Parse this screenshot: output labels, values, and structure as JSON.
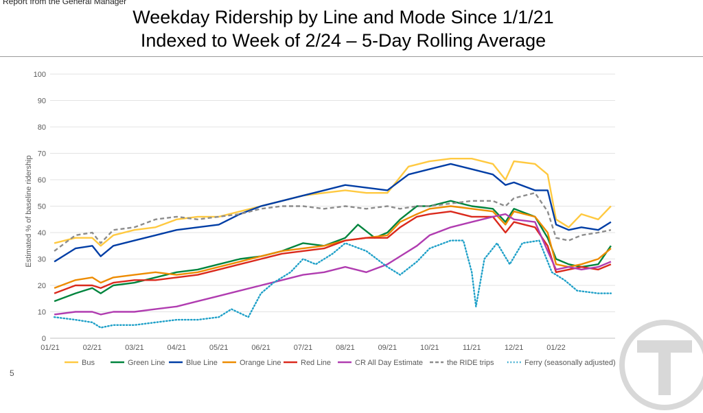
{
  "header_note": "Report from the General Manager",
  "page_number": "5",
  "logo_icon": "mbta-t-logo-icon",
  "chart_data": {
    "type": "line",
    "title_lines": [
      "Weekday Ridership by Line and Mode Since 1/1/21",
      "Indexed to Week of 2/24 – 5-Day Rolling Average"
    ],
    "xlabel": "",
    "ylabel": "Estimated % of baseline ridership",
    "ylim": [
      0,
      100
    ],
    "yticks": [
      0,
      10,
      20,
      30,
      40,
      50,
      60,
      70,
      80,
      90,
      100
    ],
    "xlim": [
      0,
      13.4
    ],
    "xticks": [
      {
        "label": "01/21",
        "x": 0
      },
      {
        "label": "02/21",
        "x": 1
      },
      {
        "label": "03/21",
        "x": 2
      },
      {
        "label": "04/21",
        "x": 3
      },
      {
        "label": "05/21",
        "x": 4
      },
      {
        "label": "06/21",
        "x": 5
      },
      {
        "label": "07/21",
        "x": 6
      },
      {
        "label": "08/21",
        "x": 7
      },
      {
        "label": "09/21",
        "x": 8
      },
      {
        "label": "10/21",
        "x": 9
      },
      {
        "label": "11/21",
        "x": 10
      },
      {
        "label": "12/21",
        "x": 11
      },
      {
        "label": "01/22",
        "x": 12
      }
    ],
    "grid": "horizontal",
    "legend_position": "bottom",
    "series": [
      {
        "name": "Bus",
        "color": "#FFC940",
        "dash": "solid",
        "points": [
          [
            0.1,
            36
          ],
          [
            0.6,
            38
          ],
          [
            1.0,
            38
          ],
          [
            1.2,
            35
          ],
          [
            1.5,
            39
          ],
          [
            2.0,
            41
          ],
          [
            2.5,
            42
          ],
          [
            3.0,
            45
          ],
          [
            3.5,
            46
          ],
          [
            4.0,
            46
          ],
          [
            4.5,
            48
          ],
          [
            5.0,
            50
          ],
          [
            5.5,
            52
          ],
          [
            6.0,
            54
          ],
          [
            6.5,
            55
          ],
          [
            7.0,
            56
          ],
          [
            7.5,
            55
          ],
          [
            8.0,
            55
          ],
          [
            8.5,
            65
          ],
          [
            9.0,
            67
          ],
          [
            9.5,
            68
          ],
          [
            10.0,
            68
          ],
          [
            10.5,
            66
          ],
          [
            10.8,
            60
          ],
          [
            11.0,
            67
          ],
          [
            11.5,
            66
          ],
          [
            11.8,
            62
          ],
          [
            12.0,
            45
          ],
          [
            12.3,
            42
          ],
          [
            12.6,
            47
          ],
          [
            13.0,
            45
          ],
          [
            13.3,
            50
          ]
        ]
      },
      {
        "name": "Green Line",
        "color": "#00843D",
        "dash": "solid",
        "points": [
          [
            0.1,
            14
          ],
          [
            0.6,
            17
          ],
          [
            1.0,
            19
          ],
          [
            1.2,
            17
          ],
          [
            1.5,
            20
          ],
          [
            2.0,
            21
          ],
          [
            2.5,
            23
          ],
          [
            3.0,
            25
          ],
          [
            3.5,
            26
          ],
          [
            4.0,
            28
          ],
          [
            4.5,
            30
          ],
          [
            5.0,
            31
          ],
          [
            5.5,
            33
          ],
          [
            6.0,
            36
          ],
          [
            6.5,
            35
          ],
          [
            7.0,
            38
          ],
          [
            7.3,
            43
          ],
          [
            7.7,
            38
          ],
          [
            8.0,
            40
          ],
          [
            8.3,
            45
          ],
          [
            8.7,
            50
          ],
          [
            9.0,
            50
          ],
          [
            9.5,
            52
          ],
          [
            10.0,
            50
          ],
          [
            10.5,
            49
          ],
          [
            10.8,
            44
          ],
          [
            11.0,
            49
          ],
          [
            11.5,
            46
          ],
          [
            11.8,
            38
          ],
          [
            12.0,
            30
          ],
          [
            12.3,
            28
          ],
          [
            12.6,
            27
          ],
          [
            13.0,
            28
          ],
          [
            13.3,
            35
          ]
        ]
      },
      {
        "name": "Blue Line",
        "color": "#003DA5",
        "dash": "solid",
        "points": [
          [
            0.1,
            29
          ],
          [
            0.6,
            34
          ],
          [
            1.0,
            35
          ],
          [
            1.2,
            31
          ],
          [
            1.5,
            35
          ],
          [
            2.0,
            37
          ],
          [
            2.5,
            39
          ],
          [
            3.0,
            41
          ],
          [
            3.5,
            42
          ],
          [
            4.0,
            43
          ],
          [
            4.5,
            47
          ],
          [
            5.0,
            50
          ],
          [
            5.5,
            52
          ],
          [
            6.0,
            54
          ],
          [
            6.5,
            56
          ],
          [
            7.0,
            58
          ],
          [
            7.5,
            57
          ],
          [
            8.0,
            56
          ],
          [
            8.5,
            62
          ],
          [
            9.0,
            64
          ],
          [
            9.5,
            66
          ],
          [
            10.0,
            64
          ],
          [
            10.5,
            62
          ],
          [
            10.8,
            58
          ],
          [
            11.0,
            59
          ],
          [
            11.5,
            56
          ],
          [
            11.8,
            56
          ],
          [
            12.0,
            43
          ],
          [
            12.3,
            41
          ],
          [
            12.6,
            42
          ],
          [
            13.0,
            41
          ],
          [
            13.3,
            44
          ]
        ]
      },
      {
        "name": "Orange Line",
        "color": "#ED8B00",
        "dash": "solid",
        "points": [
          [
            0.1,
            19
          ],
          [
            0.6,
            22
          ],
          [
            1.0,
            23
          ],
          [
            1.2,
            21
          ],
          [
            1.5,
            23
          ],
          [
            2.0,
            24
          ],
          [
            2.5,
            25
          ],
          [
            3.0,
            24
          ],
          [
            3.5,
            25
          ],
          [
            4.0,
            27
          ],
          [
            4.5,
            29
          ],
          [
            5.0,
            31
          ],
          [
            5.5,
            33
          ],
          [
            6.0,
            34
          ],
          [
            6.5,
            35
          ],
          [
            7.0,
            37
          ],
          [
            7.5,
            38
          ],
          [
            8.0,
            39
          ],
          [
            8.3,
            44
          ],
          [
            8.7,
            47
          ],
          [
            9.0,
            49
          ],
          [
            9.5,
            50
          ],
          [
            10.0,
            49
          ],
          [
            10.5,
            48
          ],
          [
            10.8,
            43
          ],
          [
            11.0,
            48
          ],
          [
            11.5,
            46
          ],
          [
            11.8,
            40
          ],
          [
            12.0,
            28
          ],
          [
            12.3,
            27
          ],
          [
            12.6,
            28
          ],
          [
            13.0,
            30
          ],
          [
            13.3,
            34
          ]
        ]
      },
      {
        "name": "Red Line",
        "color": "#DA291C",
        "dash": "solid",
        "points": [
          [
            0.1,
            17
          ],
          [
            0.6,
            20
          ],
          [
            1.0,
            20
          ],
          [
            1.2,
            19
          ],
          [
            1.5,
            21
          ],
          [
            2.0,
            22
          ],
          [
            2.5,
            22
          ],
          [
            3.0,
            23
          ],
          [
            3.5,
            24
          ],
          [
            4.0,
            26
          ],
          [
            4.5,
            28
          ],
          [
            5.0,
            30
          ],
          [
            5.5,
            32
          ],
          [
            6.0,
            33
          ],
          [
            6.5,
            34
          ],
          [
            7.0,
            37
          ],
          [
            7.5,
            38
          ],
          [
            8.0,
            38
          ],
          [
            8.3,
            42
          ],
          [
            8.7,
            46
          ],
          [
            9.0,
            47
          ],
          [
            9.5,
            48
          ],
          [
            10.0,
            46
          ],
          [
            10.5,
            46
          ],
          [
            10.8,
            40
          ],
          [
            11.0,
            44
          ],
          [
            11.5,
            42
          ],
          [
            11.8,
            35
          ],
          [
            12.0,
            25
          ],
          [
            12.3,
            26
          ],
          [
            12.6,
            27
          ],
          [
            13.0,
            26
          ],
          [
            13.3,
            28
          ]
        ]
      },
      {
        "name": "CR All Day Estimate",
        "color": "#B03CB0",
        "dash": "solid",
        "points": [
          [
            0.1,
            9
          ],
          [
            0.6,
            10
          ],
          [
            1.0,
            10
          ],
          [
            1.2,
            9
          ],
          [
            1.5,
            10
          ],
          [
            2.0,
            10
          ],
          [
            2.5,
            11
          ],
          [
            3.0,
            12
          ],
          [
            3.5,
            14
          ],
          [
            4.0,
            16
          ],
          [
            4.5,
            18
          ],
          [
            5.0,
            20
          ],
          [
            5.5,
            22
          ],
          [
            6.0,
            24
          ],
          [
            6.5,
            25
          ],
          [
            7.0,
            27
          ],
          [
            7.5,
            25
          ],
          [
            8.0,
            28
          ],
          [
            8.3,
            31
          ],
          [
            8.7,
            35
          ],
          [
            9.0,
            39
          ],
          [
            9.5,
            42
          ],
          [
            10.0,
            44
          ],
          [
            10.5,
            46
          ],
          [
            10.8,
            47
          ],
          [
            11.0,
            45
          ],
          [
            11.5,
            44
          ],
          [
            11.8,
            33
          ],
          [
            12.0,
            26
          ],
          [
            12.3,
            27
          ],
          [
            12.6,
            26
          ],
          [
            13.0,
            27
          ],
          [
            13.3,
            29
          ]
        ]
      },
      {
        "name": "the RIDE trips",
        "color": "#8C8C8C",
        "dash": "dashed",
        "points": [
          [
            0.1,
            33
          ],
          [
            0.6,
            39
          ],
          [
            1.0,
            40
          ],
          [
            1.2,
            36
          ],
          [
            1.5,
            41
          ],
          [
            2.0,
            42
          ],
          [
            2.5,
            45
          ],
          [
            3.0,
            46
          ],
          [
            3.5,
            45
          ],
          [
            4.0,
            46
          ],
          [
            4.5,
            47
          ],
          [
            5.0,
            49
          ],
          [
            5.5,
            50
          ],
          [
            6.0,
            50
          ],
          [
            6.5,
            49
          ],
          [
            7.0,
            50
          ],
          [
            7.5,
            49
          ],
          [
            8.0,
            50
          ],
          [
            8.3,
            49
          ],
          [
            8.7,
            50
          ],
          [
            9.0,
            50
          ],
          [
            9.5,
            51
          ],
          [
            10.0,
            52
          ],
          [
            10.5,
            52
          ],
          [
            10.8,
            50
          ],
          [
            11.0,
            53
          ],
          [
            11.5,
            55
          ],
          [
            11.8,
            48
          ],
          [
            12.0,
            38
          ],
          [
            12.3,
            37
          ],
          [
            12.6,
            39
          ],
          [
            13.0,
            40
          ],
          [
            13.3,
            41
          ]
        ]
      },
      {
        "name": "Ferry (seasonally adjusted)",
        "color": "#1FA0C8",
        "dash": "dotted",
        "points": [
          [
            0.1,
            8
          ],
          [
            0.6,
            7
          ],
          [
            1.0,
            6
          ],
          [
            1.2,
            4
          ],
          [
            1.5,
            5
          ],
          [
            2.0,
            5
          ],
          [
            2.5,
            6
          ],
          [
            3.0,
            7
          ],
          [
            3.5,
            7
          ],
          [
            4.0,
            8
          ],
          [
            4.3,
            11
          ],
          [
            4.7,
            8
          ],
          [
            5.0,
            17
          ],
          [
            5.3,
            21
          ],
          [
            5.7,
            25
          ],
          [
            6.0,
            30
          ],
          [
            6.3,
            28
          ],
          [
            6.7,
            32
          ],
          [
            7.0,
            36
          ],
          [
            7.5,
            33
          ],
          [
            8.0,
            27
          ],
          [
            8.3,
            24
          ],
          [
            8.7,
            29
          ],
          [
            9.0,
            34
          ],
          [
            9.5,
            37
          ],
          [
            9.8,
            37
          ],
          [
            10.0,
            25
          ],
          [
            10.1,
            12
          ],
          [
            10.3,
            30
          ],
          [
            10.6,
            36
          ],
          [
            10.9,
            28
          ],
          [
            11.2,
            36
          ],
          [
            11.6,
            37
          ],
          [
            11.9,
            25
          ],
          [
            12.2,
            22
          ],
          [
            12.5,
            18
          ],
          [
            13.0,
            17
          ],
          [
            13.3,
            17
          ]
        ]
      }
    ]
  }
}
